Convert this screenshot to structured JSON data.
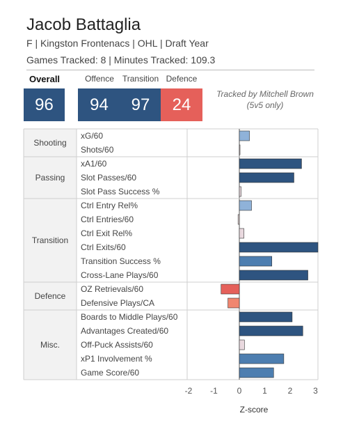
{
  "player": {
    "name": "Jacob Battaglia",
    "subtitle": "F | Kingston Frontenacs | OHL | Draft Year",
    "games_line": "Games Tracked: 8 | Minutes Tracked: 109.3"
  },
  "scores": {
    "overall_label": "Overall",
    "overall": "96",
    "offence_label": "Offence",
    "offence": "94",
    "transition_label": "Transition",
    "transition": "97",
    "defence_label": "Defence",
    "defence": "24",
    "color_high": "#2e5480",
    "color_low": "#e5605a"
  },
  "note": {
    "line1": "Tracked by Mitchell Brown",
    "line2": "(5v5 only)"
  },
  "chart_data": {
    "type": "bar",
    "orientation": "horizontal",
    "xlabel": "Z-score",
    "xlim": [
      -2,
      3
    ],
    "xticks": [
      "-2",
      "-1",
      "0",
      "1",
      "2",
      "3"
    ],
    "groups": [
      {
        "name": "Shooting",
        "rows": [
          {
            "label": "xG/60",
            "value": 0.4
          },
          {
            "label": "Shots/60",
            "value": 0.02
          }
        ]
      },
      {
        "name": "Passing",
        "rows": [
          {
            "label": "xA1/60",
            "value": 2.45
          },
          {
            "label": "Slot Passes/60",
            "value": 2.15
          },
          {
            "label": "Slot Pass Success %",
            "value": 0.07
          }
        ]
      },
      {
        "name": "Transition",
        "rows": [
          {
            "label": "Ctrl Entry Rel%",
            "value": 0.48
          },
          {
            "label": "Ctrl Entries/60",
            "value": -0.05
          },
          {
            "label": "Ctrl Exit Rel%",
            "value": 0.18
          },
          {
            "label": "Ctrl Exits/60",
            "value": 3.1
          },
          {
            "label": "Transition Success %",
            "value": 1.28
          },
          {
            "label": "Cross-Lane Plays/60",
            "value": 2.7
          }
        ]
      },
      {
        "name": "Defence",
        "rows": [
          {
            "label": "OZ Retrievals/60",
            "value": -0.72
          },
          {
            "label": "Defensive Plays/CA",
            "value": -0.45
          }
        ]
      },
      {
        "name": "Misc.",
        "rows": [
          {
            "label": "Boards to Middle Plays/60",
            "value": 2.08
          },
          {
            "label": "Advantages Created/60",
            "value": 2.5
          },
          {
            "label": "Off-Puck Assists/60",
            "value": 0.2
          },
          {
            "label": "xP1 Involvement %",
            "value": 1.75
          },
          {
            "label": "Game Score/60",
            "value": 1.35
          }
        ]
      }
    ],
    "colors": {
      "strong_positive": "#2e5480",
      "moderate_positive": "#4d7eb0",
      "weak_positive": "#8fb2d9",
      "near_zero_positive": "#e9d9df",
      "near_zero_negative": "#e9dada",
      "moderate_negative": "#f0866f",
      "strong_negative": "#e5605a"
    }
  }
}
